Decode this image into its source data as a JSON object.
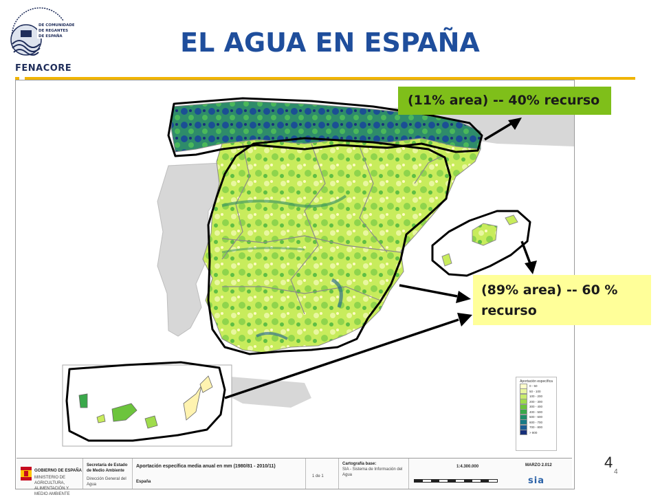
{
  "header": {
    "title": "EL AGUA EN ESPAÑA",
    "logo_text": "FENACORE",
    "logo_caption": "FEDERACIÓN NACIONAL DE COMUNIDADES DE REGANTES DE ESPAÑA"
  },
  "callouts": {
    "north": "(11% area) --  40% recurso",
    "south_line1": "(89% area) -- 60 %",
    "south_line2": "recurso"
  },
  "colors": {
    "title": "#1f4e9c",
    "accent_rule": "#f0b400",
    "north_label_bg": "#7fbf1a",
    "south_label_bg": "#ffff99",
    "outline": "#000000"
  },
  "page": {
    "number": "4",
    "number_small": "4"
  },
  "legend": {
    "title": "Aportación específica",
    "items": [
      {
        "label": "0 - 50",
        "color": "#ffffcc"
      },
      {
        "label": "50 - 100",
        "color": "#e8f5a0"
      },
      {
        "label": "100 - 200",
        "color": "#c9ec6c"
      },
      {
        "label": "200 - 300",
        "color": "#9fdc4c"
      },
      {
        "label": "300 - 400",
        "color": "#6cc43c"
      },
      {
        "label": "400 - 500",
        "color": "#3aa84a"
      },
      {
        "label": "500 - 600",
        "color": "#1f8c6a"
      },
      {
        "label": "600 - 700",
        "color": "#187a86"
      },
      {
        "label": "700 - 800",
        "color": "#1b5d95"
      },
      {
        "label": "> 800",
        "color": "#17307a"
      }
    ]
  },
  "footer": {
    "ministry_1": "Secretaría de Estado de Medio Ambiente",
    "ministry_2": "Dirección General del Agua",
    "gov": "GOBIERNO DE ESPAÑA",
    "ministry_name": "MINISTERIO DE AGRICULTURA, ALIMENTACIÓN Y MEDIO AMBIENTE",
    "map_title": "Aportación específica media anual en mm (1980/81 - 2010/11)",
    "area": "España",
    "sheet": "1 de 1",
    "source_title": "Cartografía base:",
    "source": "SIA - Sistema de Información del Agua",
    "scale": "1:4.300.000",
    "date": "MARZO 2.012",
    "brand": "sia"
  }
}
